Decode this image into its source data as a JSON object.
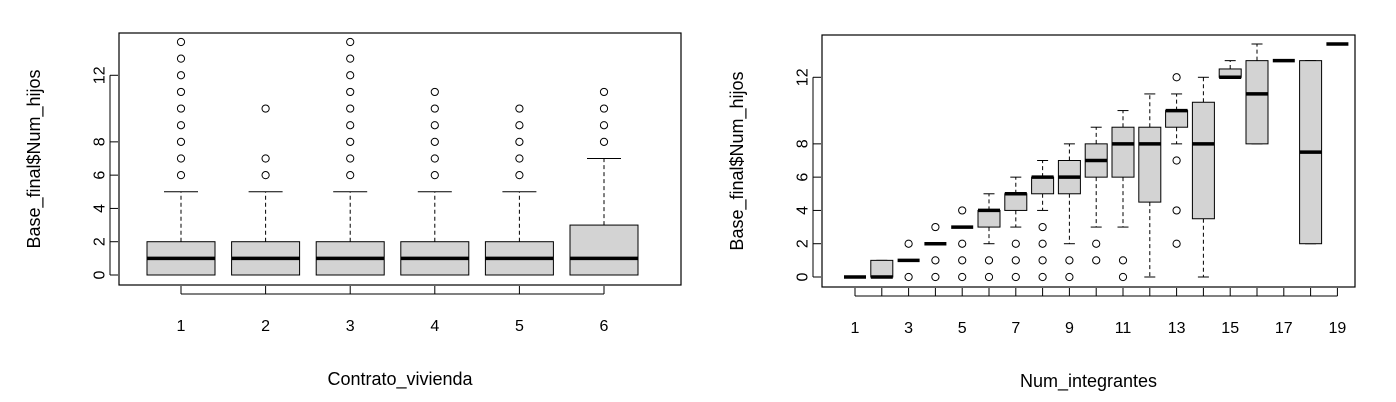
{
  "chart_data": [
    {
      "type": "box",
      "xlabel": "Contrato_vivienda",
      "ylabel": "Base_final$Num_hijos",
      "ylim": [
        0,
        14
      ],
      "yticks": [
        0,
        2,
        4,
        6,
        8,
        12
      ],
      "box_fill": "#d3d3d3",
      "grid": false,
      "boxes": [
        {
          "label": "1",
          "min": 0,
          "q1": 0,
          "median": 1,
          "q3": 2,
          "max": 5,
          "outliers": [
            6,
            7,
            8,
            9,
            10,
            11,
            12,
            13,
            14
          ]
        },
        {
          "label": "2",
          "min": 0,
          "q1": 0,
          "median": 1,
          "q3": 2,
          "max": 5,
          "outliers": [
            6,
            7,
            10
          ]
        },
        {
          "label": "3",
          "min": 0,
          "q1": 0,
          "median": 1,
          "q3": 2,
          "max": 5,
          "outliers": [
            6,
            7,
            8,
            9,
            10,
            11,
            12,
            13,
            14
          ]
        },
        {
          "label": "4",
          "min": 0,
          "q1": 0,
          "median": 1,
          "q3": 2,
          "max": 5,
          "outliers": [
            6,
            7,
            8,
            9,
            10,
            11
          ]
        },
        {
          "label": "5",
          "min": 0,
          "q1": 0,
          "median": 1,
          "q3": 2,
          "max": 5,
          "outliers": [
            6,
            7,
            8,
            9,
            10
          ]
        },
        {
          "label": "6",
          "min": 0,
          "q1": 0,
          "median": 1,
          "q3": 3,
          "max": 7,
          "outliers": [
            8,
            9,
            10,
            11
          ]
        }
      ]
    },
    {
      "type": "box",
      "xlabel": "Num_integrantes",
      "ylabel": "Base_final$Num_hijos",
      "ylim": [
        0,
        14
      ],
      "yticks": [
        0,
        2,
        4,
        6,
        8,
        12
      ],
      "box_fill": "#d3d3d3",
      "grid": false,
      "boxes": [
        {
          "label": "1",
          "min": 0,
          "q1": 0,
          "median": 0,
          "q3": 0,
          "max": 0,
          "outliers": []
        },
        {
          "label": "",
          "min": 0,
          "q1": 0,
          "median": 0,
          "q3": 1,
          "max": 1,
          "outliers": []
        },
        {
          "label": "3",
          "min": 1,
          "q1": 1,
          "median": 1,
          "q3": 1,
          "max": 1,
          "outliers": [
            0,
            2
          ]
        },
        {
          "label": "",
          "min": 2,
          "q1": 2,
          "median": 2,
          "q3": 2,
          "max": 2,
          "outliers": [
            0,
            1,
            3
          ]
        },
        {
          "label": "5",
          "min": 3,
          "q1": 3,
          "median": 3,
          "q3": 3,
          "max": 3,
          "outliers": [
            0,
            1,
            2,
            4
          ]
        },
        {
          "label": "",
          "min": 2,
          "q1": 3,
          "median": 4,
          "q3": 4,
          "max": 5,
          "outliers": [
            0,
            1
          ]
        },
        {
          "label": "7",
          "min": 3,
          "q1": 4,
          "median": 5,
          "q3": 5,
          "max": 6,
          "outliers": [
            0,
            1,
            2
          ]
        },
        {
          "label": "",
          "min": 4,
          "q1": 5,
          "median": 6,
          "q3": 6,
          "max": 7,
          "outliers": [
            0,
            1,
            2,
            3
          ]
        },
        {
          "label": "9",
          "min": 2,
          "q1": 5,
          "median": 6,
          "q3": 7,
          "max": 8,
          "outliers": [
            0,
            1
          ]
        },
        {
          "label": "",
          "min": 3,
          "q1": 6,
          "median": 7,
          "q3": 8,
          "max": 9,
          "outliers": [
            1,
            2
          ]
        },
        {
          "label": "11",
          "min": 3,
          "q1": 6,
          "median": 8,
          "q3": 9,
          "max": 10,
          "outliers": [
            0,
            1
          ]
        },
        {
          "label": "",
          "min": 0,
          "q1": 4.5,
          "median": 8,
          "q3": 9,
          "max": 11,
          "outliers": []
        },
        {
          "label": "13",
          "min": 8,
          "q1": 9,
          "median": 10,
          "q3": 10,
          "max": 11,
          "outliers": [
            2,
            4,
            7,
            12
          ]
        },
        {
          "label": "",
          "min": 0,
          "q1": 3.5,
          "median": 8,
          "q3": 10.5,
          "max": 12,
          "outliers": []
        },
        {
          "label": "15",
          "min": 12,
          "q1": 12,
          "median": 12,
          "q3": 12.5,
          "max": 13,
          "outliers": []
        },
        {
          "label": "",
          "min": 8,
          "q1": 8,
          "median": 11,
          "q3": 13,
          "max": 14,
          "outliers": []
        },
        {
          "label": "17",
          "min": 13,
          "q1": 13,
          "median": 13,
          "q3": 13,
          "max": 13,
          "outliers": []
        },
        {
          "label": "",
          "min": 2,
          "q1": 2,
          "median": 7.5,
          "q3": 13,
          "max": 13,
          "outliers": []
        },
        {
          "label": "19",
          "min": 14,
          "q1": 14,
          "median": 14,
          "q3": 14,
          "max": 14,
          "outliers": []
        }
      ]
    }
  ]
}
